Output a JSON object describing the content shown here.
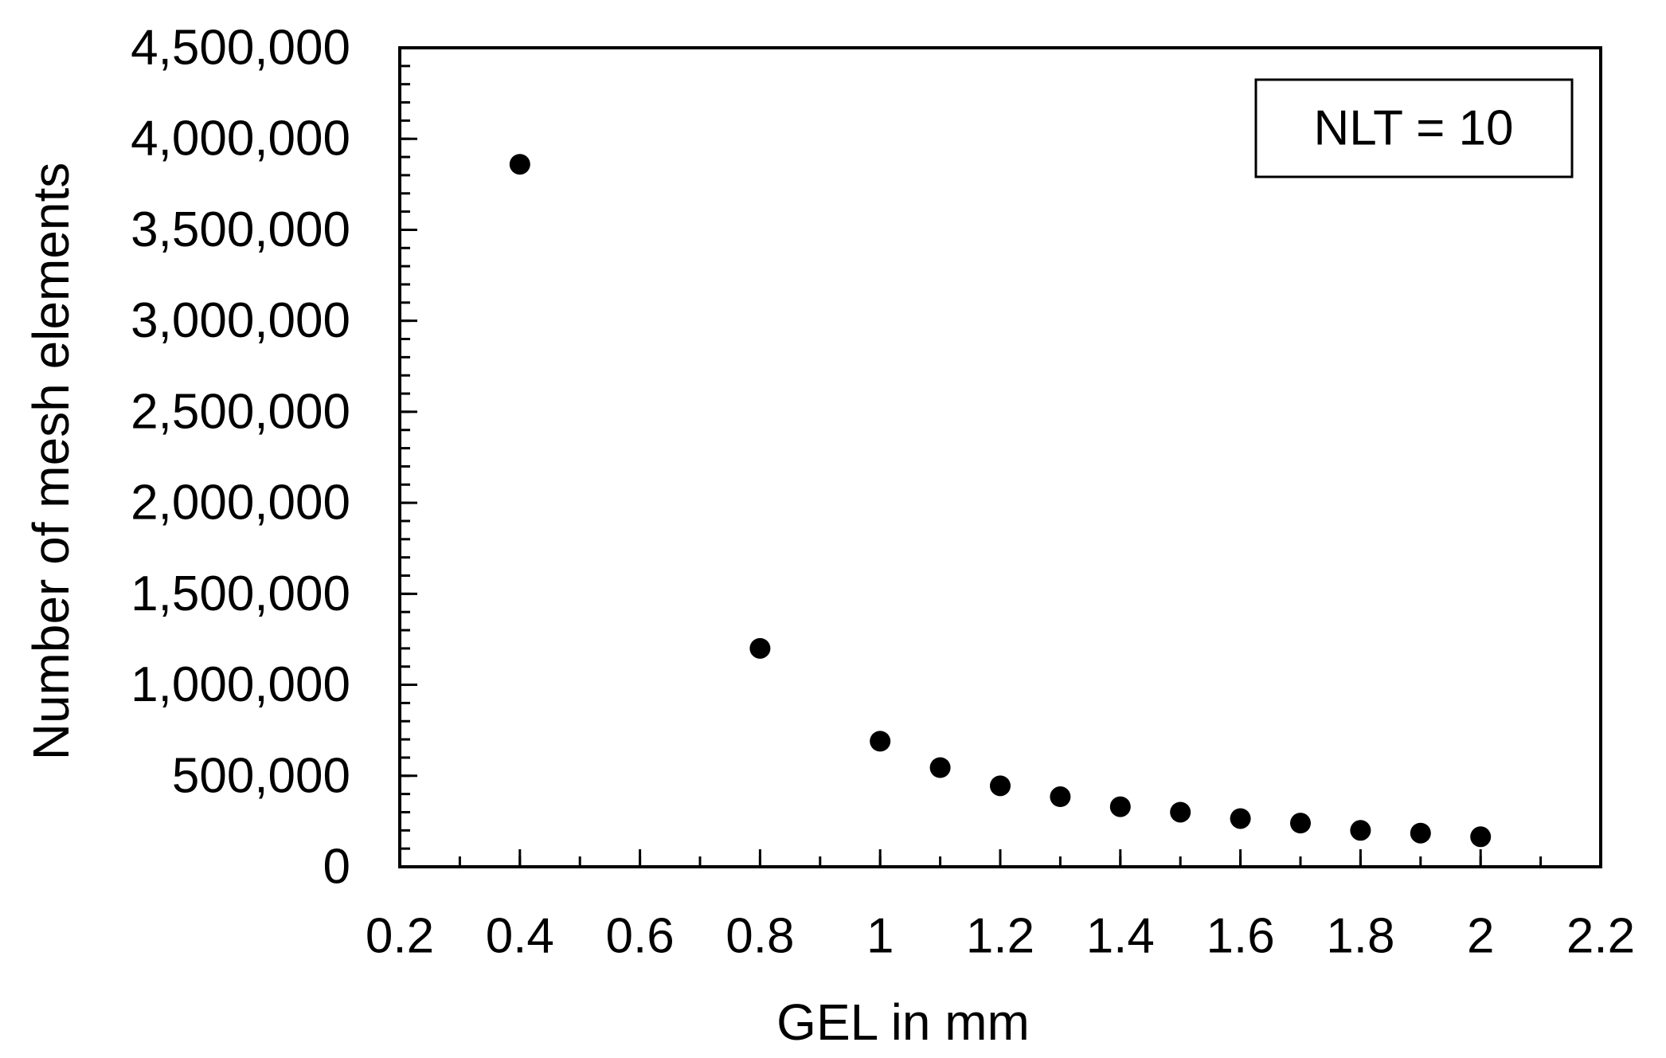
{
  "chart_data": {
    "type": "scatter",
    "title": "",
    "xlabel": "GEL in mm",
    "ylabel": "Number of mesh elements",
    "xlim": [
      0.2,
      2.2
    ],
    "ylim": [
      0,
      4500000
    ],
    "x_ticks": [
      0.2,
      0.4,
      0.6,
      0.8,
      1,
      1.2,
      1.4,
      1.6,
      1.8,
      2,
      2.2
    ],
    "x_tick_labels": [
      "0.2",
      "0.4",
      "0.6",
      "0.8",
      "1",
      "1.2",
      "1.4",
      "1.6",
      "1.8",
      "2",
      "2.2"
    ],
    "x_minor_step": 0.1,
    "y_ticks": [
      0,
      500000,
      1000000,
      1500000,
      2000000,
      2500000,
      3000000,
      3500000,
      4000000,
      4500000
    ],
    "y_tick_labels": [
      "0",
      "500,000",
      "1,000,000",
      "1,500,000",
      "2,000,000",
      "2,500,000",
      "3,000,000",
      "3,500,000",
      "4,000,000",
      "4,500,000"
    ],
    "y_minor_step": 100000,
    "grid": false,
    "legend": {
      "text": "NLT = 10",
      "placement": "top-right"
    },
    "series": [
      {
        "marker_color": "#000000",
        "points": [
          {
            "x": 0.4,
            "y": 3860000
          },
          {
            "x": 0.8,
            "y": 1200000
          },
          {
            "x": 1.0,
            "y": 690000
          },
          {
            "x": 1.1,
            "y": 545000
          },
          {
            "x": 1.2,
            "y": 445000
          },
          {
            "x": 1.3,
            "y": 385000
          },
          {
            "x": 1.4,
            "y": 330000
          },
          {
            "x": 1.5,
            "y": 300000
          },
          {
            "x": 1.6,
            "y": 265000
          },
          {
            "x": 1.7,
            "y": 240000
          },
          {
            "x": 1.8,
            "y": 200000
          },
          {
            "x": 1.9,
            "y": 185000
          },
          {
            "x": 2.0,
            "y": 165000
          }
        ]
      }
    ]
  }
}
